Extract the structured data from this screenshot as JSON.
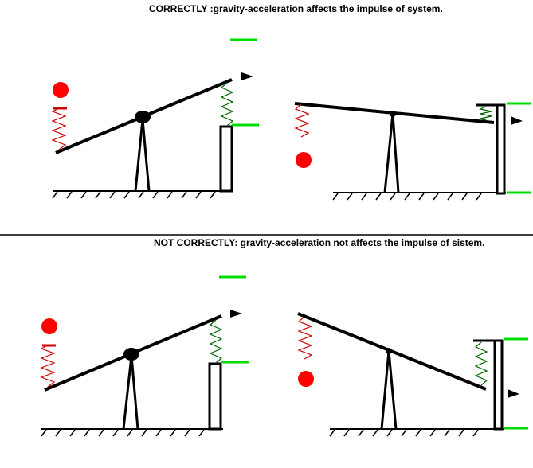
{
  "captions": {
    "top": "CORRECTLY :gravity-acceleration affects the impulse of system.",
    "bottom": "NOT CORRECTLY: gravity-acceleration not affects the impulse of sistem."
  },
  "colors": {
    "ball": "#ff0000",
    "spring_red": "#cc0000",
    "spring_green": "#006600",
    "marker_green": "#00dd00",
    "line": "#000000"
  },
  "icons": {
    "ball": "red-ball-icon",
    "arrow": "arrow-right-icon",
    "pivot": "pivot-icon"
  }
}
